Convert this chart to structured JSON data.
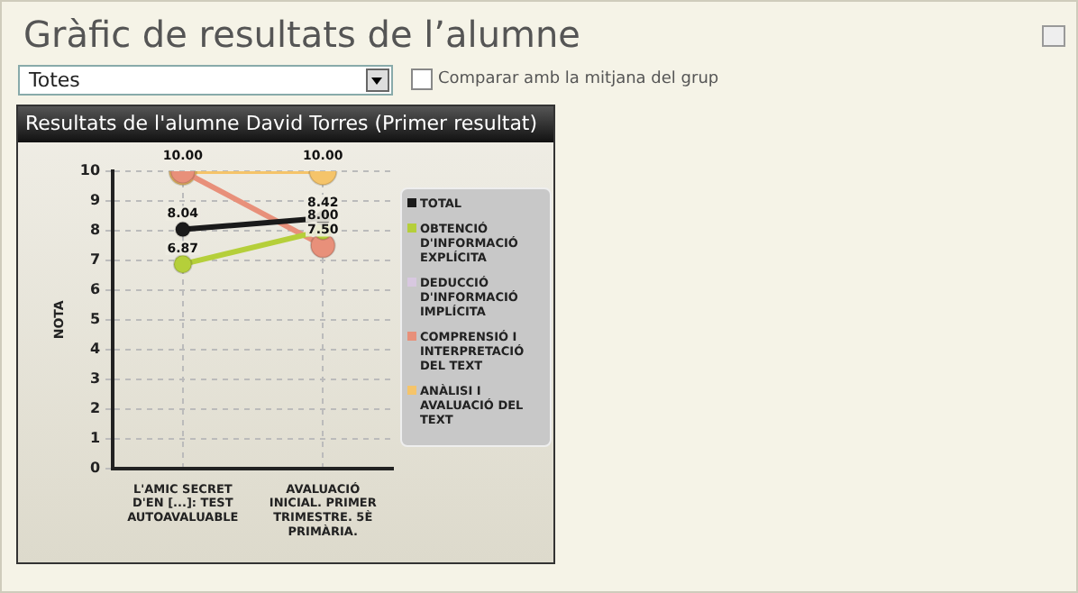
{
  "chart_data": {
    "type": "line",
    "title": "Gràfic de resultats de l’alumne",
    "subtitle": "Resultats de l'alumne David Torres (Primer resultat)",
    "annotations": [
      "Totes",
      "Comparar amb la mitjana del grup"
    ],
    "ylabel": "NOTA",
    "categories": [
      "L'AMIC SECRET D'EN [...]: TEST AUTOAVALUABLE",
      "AVALUACIÓ INICIAL. PRIMER TRIMESTRE. 5È PRIMÀRIA."
    ],
    "series": [
      {
        "name": "TOTAL",
        "color": "#1a1a1a",
        "values": [
          8.04,
          8.42
        ],
        "value_labels": [
          "8.04",
          "8.42"
        ]
      },
      {
        "name": "OBTENCIÓ D'INFORMACIÓ EXPLÍCITA",
        "color": "#b5cf3a",
        "values": [
          6.87,
          8.0
        ],
        "value_labels": [
          "6.87",
          "8.00"
        ]
      },
      {
        "name": "DEDUCCIÓ D'INFORMACIÓ IMPLÍCITA",
        "color": "#d8c8e0",
        "values": [
          null,
          null
        ]
      },
      {
        "name": "COMPRENSIÓ I INTERPRETACIÓ DEL TEXT",
        "color": "#e8907a",
        "values": [
          10,
          7.5
        ],
        "value_labels": [
          "10.00",
          "7.50"
        ]
      },
      {
        "name": "ANÀLISI I AVALUACIÓ DEL TEXT",
        "color": "#f5c46a",
        "values": [
          10,
          10
        ],
        "value_labels": [
          null,
          "10.00"
        ]
      }
    ],
    "ylim": [
      0,
      10
    ],
    "yticks": [
      0,
      1,
      2,
      3,
      4,
      5,
      6,
      7,
      8,
      9,
      10
    ],
    "grid": true,
    "legend": "right",
    "marker": "circle",
    "line_style": "solid"
  }
}
